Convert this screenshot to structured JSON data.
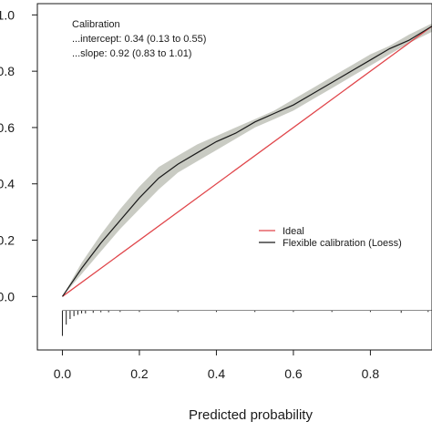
{
  "chart_data": {
    "type": "line",
    "xlabel": "Predicted probability",
    "ylabel": "",
    "xlim": [
      -0.065,
      0.96
    ],
    "ylim": [
      -0.19,
      1.04
    ],
    "x_ticks": [
      0.0,
      0.2,
      0.4,
      0.6,
      0.8
    ],
    "y_ticks": [
      0.0,
      0.2,
      0.4,
      0.6,
      0.8,
      1.0
    ],
    "x_tick_labels": [
      "0.0",
      "0.2",
      "0.4",
      "0.6",
      "0.8"
    ],
    "y_tick_labels": [
      "0.0",
      "0.2",
      "0.4",
      "0.6",
      "0.8",
      "1.0"
    ],
    "grid": false,
    "annotation": {
      "title": "Calibration",
      "intercept": "...intercept: 0.34 (0.13 to 0.55)",
      "slope": "...slope: 0.92 (0.83 to 1.01)"
    },
    "legend": {
      "placement": "right",
      "entries": [
        {
          "label": "Ideal",
          "color": "#e0454a"
        },
        {
          "label": "Flexible calibration (Loess)",
          "color": "#1a1a1a"
        }
      ]
    },
    "series": [
      {
        "name": "Ideal",
        "color": "#e0454a",
        "x": [
          0.0,
          0.96
        ],
        "y": [
          0.0,
          0.96
        ]
      },
      {
        "name": "Flexible calibration (Loess)",
        "color": "#1a1a1a",
        "band_color": "#c9cbc3",
        "x": [
          0.0,
          0.05,
          0.1,
          0.15,
          0.2,
          0.25,
          0.3,
          0.35,
          0.4,
          0.45,
          0.5,
          0.55,
          0.6,
          0.65,
          0.7,
          0.75,
          0.8,
          0.85,
          0.9,
          0.96
        ],
        "y": [
          0.0,
          0.1,
          0.19,
          0.27,
          0.35,
          0.42,
          0.47,
          0.51,
          0.55,
          0.58,
          0.62,
          0.65,
          0.68,
          0.72,
          0.76,
          0.8,
          0.84,
          0.88,
          0.91,
          0.96
        ],
        "lower": [
          0.0,
          0.08,
          0.16,
          0.24,
          0.31,
          0.38,
          0.44,
          0.48,
          0.52,
          0.56,
          0.6,
          0.63,
          0.66,
          0.7,
          0.74,
          0.78,
          0.82,
          0.86,
          0.9,
          0.94
        ],
        "upper": [
          0.0,
          0.12,
          0.22,
          0.31,
          0.39,
          0.46,
          0.5,
          0.54,
          0.57,
          0.6,
          0.63,
          0.66,
          0.7,
          0.74,
          0.78,
          0.82,
          0.86,
          0.89,
          0.93,
          0.97
        ]
      }
    ],
    "rug": {
      "color": "#1a1a1a",
      "x": [
        0.0,
        0.01,
        0.02,
        0.03,
        0.04,
        0.05,
        0.06,
        0.08,
        0.1,
        0.12,
        0.15,
        0.2,
        0.3,
        0.4,
        0.5,
        0.6,
        0.7,
        0.8,
        0.88,
        0.95
      ],
      "length": [
        0.09,
        0.05,
        0.03,
        0.02,
        0.015,
        0.01,
        0.01,
        0.008,
        0.006,
        0.006,
        0.005,
        0.005,
        0.005,
        0.005,
        0.005,
        0.005,
        0.005,
        0.005,
        0.008,
        0.005
      ]
    }
  }
}
